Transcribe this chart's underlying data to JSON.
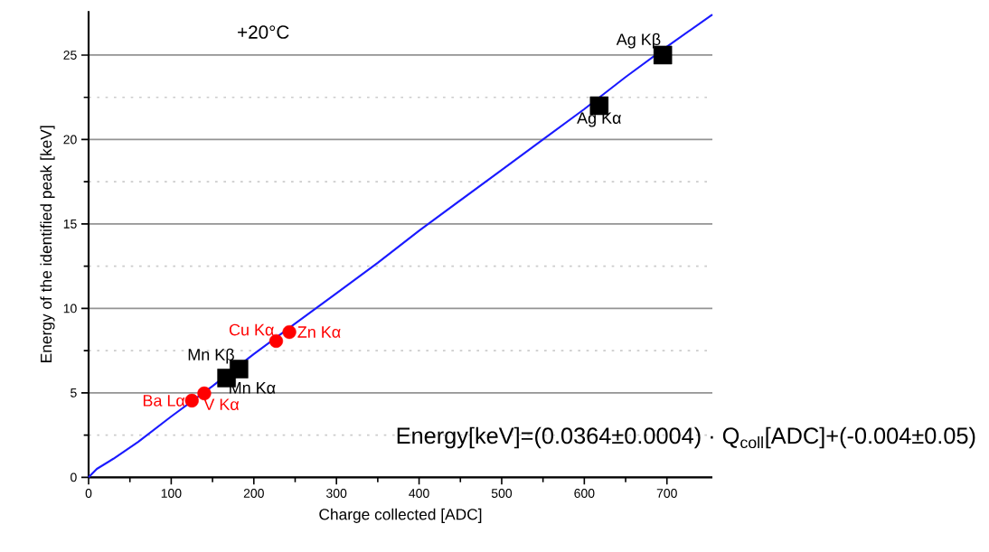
{
  "chart_data": {
    "type": "scatter",
    "xlabel": "Charge collected [ADC]",
    "ylabel": "Energy of the identified peak [keV]",
    "annotations": [
      "+20°C",
      "Energy[keV]=(0.0364±0.0004) · Q$_{coll}$[ADC]+(-0.004±0.05)"
    ],
    "xlim": [
      0,
      755
    ],
    "ylim": [
      0,
      27.6
    ],
    "xticks": [
      0,
      100,
      200,
      300,
      400,
      500,
      600,
      700
    ],
    "yticks": [
      0,
      5,
      10,
      15,
      20,
      25
    ],
    "grid": "y",
    "series": [
      {
        "type": "line",
        "color": "#1a1aff",
        "marker": "none",
        "x": [
          0,
          10,
          30,
          60,
          100,
          150,
          200,
          250,
          300,
          350,
          400,
          450,
          500,
          550,
          600,
          650,
          700,
          755
        ],
        "values": [
          0,
          0.5,
          1.1,
          2.1,
          3.6,
          5.4,
          7.3,
          9.1,
          10.9,
          12.7,
          14.6,
          16.4,
          18.2,
          20.0,
          21.8,
          23.7,
          25.5,
          27.4
        ]
      },
      {
        "name": "Ba Lα",
        "marker": "circle",
        "color": "#ff0000",
        "x": [
          125
        ],
        "values": [
          4.54
        ]
      },
      {
        "name": "V Kα",
        "marker": "circle",
        "color": "#ff0000",
        "x": [
          140
        ],
        "values": [
          4.97
        ]
      },
      {
        "name": "Mn Kα",
        "marker": "square",
        "color": "#000000",
        "x": [
          167
        ],
        "values": [
          5.88
        ]
      },
      {
        "name": "Mn Kβ",
        "marker": "square",
        "color": "#000000",
        "x": [
          182
        ],
        "values": [
          6.41
        ]
      },
      {
        "name": "Cu Kα",
        "marker": "circle",
        "color": "#ff0000",
        "x": [
          227
        ],
        "values": [
          8.07
        ]
      },
      {
        "name": "Zn Kα",
        "marker": "circle",
        "color": "#ff0000",
        "x": [
          243
        ],
        "values": [
          8.6
        ]
      },
      {
        "name": "Ag Kα",
        "marker": "square",
        "color": "#000000",
        "x": [
          618
        ],
        "values": [
          22.0
        ]
      },
      {
        "name": "Ag Kβ",
        "marker": "square",
        "color": "#000000",
        "x": [
          695
        ],
        "values": [
          25.0
        ]
      }
    ]
  }
}
